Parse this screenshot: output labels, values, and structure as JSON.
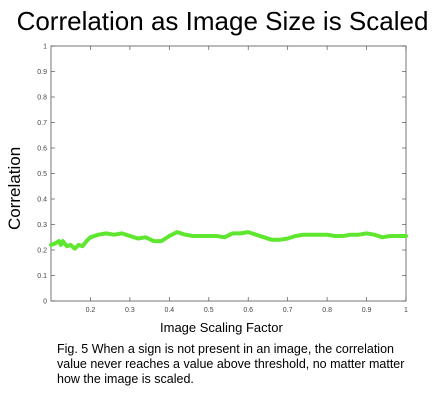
{
  "chart_data": {
    "type": "line",
    "title": "Correlation as Image Size is Scaled",
    "xlabel": "Image Scaling Factor",
    "ylabel": "Correlation",
    "xlim": [
      0.1,
      1.0
    ],
    "ylim": [
      0,
      1
    ],
    "x_ticks": [
      "0.2",
      "0.3",
      "0.4",
      "0.5",
      "0.6",
      "0.7",
      "0.8",
      "0.9",
      "1"
    ],
    "y_ticks": [
      "0",
      "0.1",
      "0.2",
      "0.3",
      "0.4",
      "0.5",
      "0.6",
      "0.7",
      "0.8",
      "0.9",
      "1"
    ],
    "grid": false,
    "series": [
      {
        "color": "#5fe62e",
        "x": [
          0.1,
          0.11,
          0.12,
          0.125,
          0.13,
          0.14,
          0.15,
          0.16,
          0.17,
          0.18,
          0.19,
          0.2,
          0.22,
          0.24,
          0.26,
          0.28,
          0.3,
          0.32,
          0.34,
          0.36,
          0.38,
          0.4,
          0.42,
          0.44,
          0.46,
          0.48,
          0.5,
          0.52,
          0.54,
          0.56,
          0.58,
          0.6,
          0.62,
          0.64,
          0.66,
          0.68,
          0.7,
          0.72,
          0.74,
          0.76,
          0.78,
          0.8,
          0.82,
          0.84,
          0.86,
          0.88,
          0.9,
          0.92,
          0.94,
          0.96,
          0.98,
          1.0
        ],
        "y": [
          0.22,
          0.225,
          0.235,
          0.22,
          0.235,
          0.215,
          0.22,
          0.205,
          0.22,
          0.215,
          0.235,
          0.25,
          0.26,
          0.265,
          0.26,
          0.265,
          0.255,
          0.245,
          0.25,
          0.235,
          0.235,
          0.255,
          0.27,
          0.26,
          0.255,
          0.255,
          0.255,
          0.255,
          0.25,
          0.265,
          0.265,
          0.27,
          0.26,
          0.25,
          0.24,
          0.24,
          0.245,
          0.255,
          0.26,
          0.26,
          0.26,
          0.26,
          0.255,
          0.255,
          0.26,
          0.26,
          0.265,
          0.26,
          0.25,
          0.255,
          0.255,
          0.255
        ]
      }
    ]
  },
  "caption": "Fig. 5 When a sign is not present in an image, the correlation value never reaches a value above threshold, no matter matter how the image is scaled."
}
